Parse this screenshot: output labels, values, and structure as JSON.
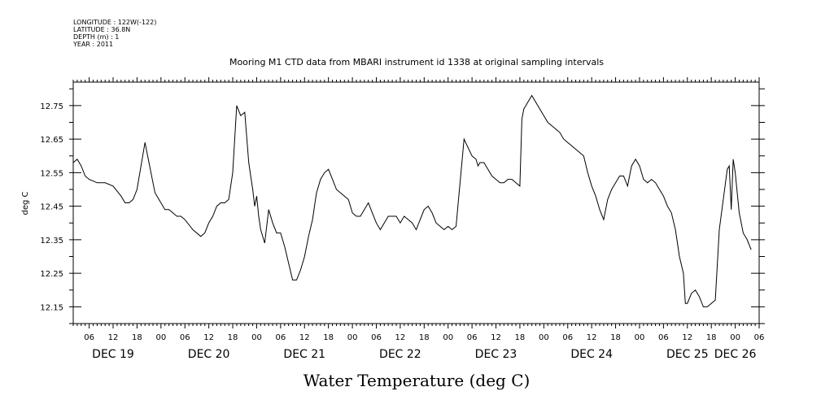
{
  "header": {
    "lines": [
      "LONGITUDE : 122W(-122)",
      "LATITUDE : 36.8N",
      "DEPTH (m) : 1",
      "YEAR : 2011"
    ]
  },
  "chart_data": {
    "type": "line",
    "title": "Mooring M1 CTD data from MBARI instrument id 1338 at original sampling intervals",
    "xlabel": "Water Temperature (deg C)",
    "ylabel": "deg C",
    "ylim": [
      12.1,
      12.82
    ],
    "xlim": [
      "2011-12-19T02:00",
      "2011-12-26T06:00"
    ],
    "yticks": [
      "12.15",
      "12.25",
      "12.35",
      "12.45",
      "12.55",
      "12.65",
      "12.75"
    ],
    "xticks": [
      {
        "t": "2011-12-19T06:00",
        "label": "06"
      },
      {
        "t": "2011-12-19T12:00",
        "label": "12"
      },
      {
        "t": "2011-12-19T18:00",
        "label": "18"
      },
      {
        "t": "2011-12-20T00:00",
        "label": "00"
      },
      {
        "t": "2011-12-20T06:00",
        "label": "06"
      },
      {
        "t": "2011-12-20T12:00",
        "label": "12"
      },
      {
        "t": "2011-12-20T18:00",
        "label": "18"
      },
      {
        "t": "2011-12-21T00:00",
        "label": "00"
      },
      {
        "t": "2011-12-21T06:00",
        "label": "06"
      },
      {
        "t": "2011-12-21T12:00",
        "label": "12"
      },
      {
        "t": "2011-12-21T18:00",
        "label": "18"
      },
      {
        "t": "2011-12-22T00:00",
        "label": "00"
      },
      {
        "t": "2011-12-22T06:00",
        "label": "06"
      },
      {
        "t": "2011-12-22T12:00",
        "label": "12"
      },
      {
        "t": "2011-12-22T18:00",
        "label": "18"
      },
      {
        "t": "2011-12-23T00:00",
        "label": "00"
      },
      {
        "t": "2011-12-23T06:00",
        "label": "06"
      },
      {
        "t": "2011-12-23T12:00",
        "label": "12"
      },
      {
        "t": "2011-12-23T18:00",
        "label": "18"
      },
      {
        "t": "2011-12-24T00:00",
        "label": "00"
      },
      {
        "t": "2011-12-24T06:00",
        "label": "06"
      },
      {
        "t": "2011-12-24T12:00",
        "label": "12"
      },
      {
        "t": "2011-12-24T18:00",
        "label": "18"
      },
      {
        "t": "2011-12-25T00:00",
        "label": "00"
      },
      {
        "t": "2011-12-25T06:00",
        "label": "06"
      },
      {
        "t": "2011-12-25T12:00",
        "label": "12"
      },
      {
        "t": "2011-12-25T18:00",
        "label": "18"
      },
      {
        "t": "2011-12-26T00:00",
        "label": "00"
      },
      {
        "t": "2011-12-26T06:00",
        "label": "06"
      }
    ],
    "date_labels": [
      {
        "t": "2011-12-19T12:00",
        "label": "DEC 19"
      },
      {
        "t": "2011-12-20T12:00",
        "label": "DEC 20"
      },
      {
        "t": "2011-12-21T12:00",
        "label": "DEC 21"
      },
      {
        "t": "2011-12-22T12:00",
        "label": "DEC 22"
      },
      {
        "t": "2011-12-23T12:00",
        "label": "DEC 23"
      },
      {
        "t": "2011-12-24T12:00",
        "label": "DEC 24"
      },
      {
        "t": "2011-12-25T12:00",
        "label": "DEC 25"
      },
      {
        "t": "2011-12-26T00:00",
        "label": "DEC 26"
      }
    ],
    "grid": false,
    "series": [
      {
        "x": [
          "2011-12-19T02:00",
          "2011-12-19T03:00",
          "2011-12-19T04:00",
          "2011-12-19T05:00",
          "2011-12-19T06:00",
          "2011-12-19T08:00",
          "2011-12-19T10:00",
          "2011-12-19T12:00",
          "2011-12-19T14:00",
          "2011-12-19T15:00",
          "2011-12-19T16:00",
          "2011-12-19T17:00",
          "2011-12-19T18:00",
          "2011-12-19T19:00",
          "2011-12-19T20:00",
          "2011-12-19T21:00",
          "2011-12-19T22:00",
          "2011-12-19T22:30",
          "2011-12-19T23:00",
          "2011-12-20T00:00",
          "2011-12-20T01:00",
          "2011-12-20T02:00",
          "2011-12-20T03:00",
          "2011-12-20T04:00",
          "2011-12-20T05:00",
          "2011-12-20T06:00",
          "2011-12-20T08:00",
          "2011-12-20T10:00",
          "2011-12-20T11:00",
          "2011-12-20T12:00",
          "2011-12-20T13:00",
          "2011-12-20T14:00",
          "2011-12-20T15:00",
          "2011-12-20T16:00",
          "2011-12-20T17:00",
          "2011-12-20T18:00",
          "2011-12-20T19:00",
          "2011-12-20T20:00",
          "2011-12-20T21:00",
          "2011-12-20T22:00",
          "2011-12-20T22:30",
          "2011-12-20T23:00",
          "2011-12-20T23:30",
          "2011-12-21T00:00",
          "2011-12-21T00:30",
          "2011-12-21T01:00",
          "2011-12-21T02:00",
          "2011-12-21T03:00",
          "2011-12-21T04:00",
          "2011-12-21T05:00",
          "2011-12-21T06:00",
          "2011-12-21T06:30",
          "2011-12-21T07:00",
          "2011-12-21T08:00",
          "2011-12-21T09:00",
          "2011-12-21T10:00",
          "2011-12-21T11:00",
          "2011-12-21T12:00",
          "2011-12-21T13:00",
          "2011-12-21T14:00",
          "2011-12-21T14:30",
          "2011-12-21T15:00",
          "2011-12-21T16:00",
          "2011-12-21T17:00",
          "2011-12-21T18:00",
          "2011-12-21T19:00",
          "2011-12-21T20:00",
          "2011-12-21T21:00",
          "2011-12-21T22:00",
          "2011-12-21T23:00",
          "2011-12-22T00:00",
          "2011-12-22T01:00",
          "2011-12-22T02:00",
          "2011-12-22T03:00",
          "2011-12-22T04:00",
          "2011-12-22T05:00",
          "2011-12-22T06:00",
          "2011-12-22T07:00",
          "2011-12-22T08:00",
          "2011-12-22T09:00",
          "2011-12-22T10:00",
          "2011-12-22T11:00",
          "2011-12-22T12:00",
          "2011-12-22T13:00",
          "2011-12-22T14:00",
          "2011-12-22T15:00",
          "2011-12-22T16:00",
          "2011-12-22T17:00",
          "2011-12-22T18:00",
          "2011-12-22T19:00",
          "2011-12-22T20:00",
          "2011-12-22T21:00",
          "2011-12-22T22:00",
          "2011-12-22T23:00",
          "2011-12-23T00:00",
          "2011-12-23T01:00",
          "2011-12-23T02:00",
          "2011-12-23T04:00",
          "2011-12-23T06:00",
          "2011-12-23T07:00",
          "2011-12-23T07:30",
          "2011-12-23T08:00",
          "2011-12-23T09:00",
          "2011-12-23T10:00",
          "2011-12-23T11:00",
          "2011-12-23T12:00",
          "2011-12-23T13:00",
          "2011-12-23T14:00",
          "2011-12-23T15:00",
          "2011-12-23T16:00",
          "2011-12-23T17:00",
          "2011-12-23T18:00",
          "2011-12-23T18:30",
          "2011-12-23T19:00",
          "2011-12-23T20:00",
          "2011-12-23T21:00",
          "2011-12-23T22:00",
          "2011-12-23T23:00",
          "2011-12-24T00:00",
          "2011-12-24T01:00",
          "2011-12-24T02:00",
          "2011-12-24T03:00",
          "2011-12-24T04:00",
          "2011-12-24T05:00",
          "2011-12-24T06:00",
          "2011-12-24T07:00",
          "2011-12-24T08:00",
          "2011-12-24T09:00",
          "2011-12-24T10:00",
          "2011-12-24T11:00",
          "2011-12-24T12:00",
          "2011-12-24T13:00",
          "2011-12-24T14:00",
          "2011-12-24T15:00",
          "2011-12-24T16:00",
          "2011-12-24T17:00",
          "2011-12-24T18:00",
          "2011-12-24T19:00",
          "2011-12-24T20:00",
          "2011-12-24T21:00",
          "2011-12-24T22:00",
          "2011-12-24T23:00",
          "2011-12-25T00:00",
          "2011-12-25T01:00",
          "2011-12-25T02:00",
          "2011-12-25T03:00",
          "2011-12-25T04:00",
          "2011-12-25T05:00",
          "2011-12-25T06:00",
          "2011-12-25T07:00",
          "2011-12-25T08:00",
          "2011-12-25T09:00",
          "2011-12-25T10:00",
          "2011-12-25T11:00",
          "2011-12-25T11:30",
          "2011-12-25T12:00",
          "2011-12-25T13:00",
          "2011-12-25T14:00",
          "2011-12-25T15:00",
          "2011-12-25T16:00",
          "2011-12-25T17:00",
          "2011-12-25T18:00",
          "2011-12-25T19:00",
          "2011-12-25T20:00",
          "2011-12-25T21:00",
          "2011-12-25T22:00",
          "2011-12-25T22:30",
          "2011-12-25T23:00",
          "2011-12-25T23:30",
          "2011-12-26T00:00",
          "2011-12-26T01:00",
          "2011-12-26T02:00",
          "2011-12-26T03:00",
          "2011-12-26T04:00"
        ],
        "values": [
          12.58,
          12.59,
          12.57,
          12.54,
          12.53,
          12.52,
          12.52,
          12.51,
          12.48,
          12.46,
          12.46,
          12.47,
          12.5,
          12.57,
          12.64,
          12.58,
          12.52,
          12.49,
          12.48,
          12.46,
          12.44,
          12.44,
          12.43,
          12.42,
          12.42,
          12.41,
          12.38,
          12.36,
          12.37,
          12.4,
          12.42,
          12.45,
          12.46,
          12.46,
          12.47,
          12.55,
          12.75,
          12.72,
          12.73,
          12.58,
          12.54,
          12.5,
          12.45,
          12.48,
          12.42,
          12.38,
          12.34,
          12.44,
          12.4,
          12.37,
          12.37,
          12.35,
          12.33,
          12.28,
          12.23,
          12.23,
          12.26,
          12.3,
          12.36,
          12.41,
          12.45,
          12.49,
          12.53,
          12.55,
          12.56,
          12.53,
          12.5,
          12.49,
          12.48,
          12.47,
          12.43,
          12.42,
          12.42,
          12.44,
          12.46,
          12.43,
          12.4,
          12.38,
          12.4,
          12.42,
          12.42,
          12.42,
          12.4,
          12.42,
          12.41,
          12.4,
          12.38,
          12.41,
          12.44,
          12.45,
          12.43,
          12.4,
          12.39,
          12.38,
          12.39,
          12.38,
          12.39,
          12.65,
          12.6,
          12.59,
          12.57,
          12.58,
          12.58,
          12.56,
          12.54,
          12.53,
          12.52,
          12.52,
          12.53,
          12.53,
          12.52,
          12.51,
          12.71,
          12.74,
          12.76,
          12.78,
          12.76,
          12.74,
          12.72,
          12.7,
          12.69,
          12.68,
          12.67,
          12.65,
          12.64,
          12.63,
          12.62,
          12.61,
          12.6,
          12.55,
          12.51,
          12.48,
          12.44,
          12.41,
          12.47,
          12.5,
          12.52,
          12.54,
          12.54,
          12.51,
          12.57,
          12.59,
          12.57,
          12.53,
          12.52,
          12.53,
          12.52,
          12.5,
          12.48,
          12.45,
          12.43,
          12.38,
          12.3,
          12.25,
          12.16,
          12.16,
          12.19,
          12.2,
          12.18,
          12.15,
          12.15,
          12.16,
          12.17,
          12.38,
          12.47,
          12.56,
          12.57,
          12.44,
          12.59,
          12.55,
          12.43,
          12.37,
          12.35,
          12.32
        ]
      }
    ]
  }
}
